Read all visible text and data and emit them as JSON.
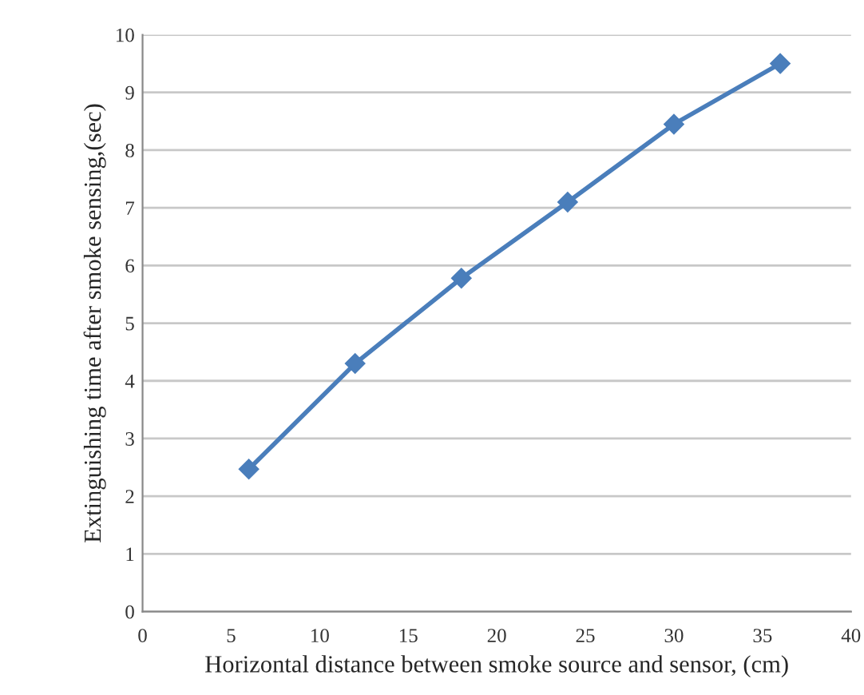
{
  "chart_data": {
    "type": "line",
    "xlabel": "Horizontal distance between smoke source and sensor, (cm)",
    "ylabel": "Extinguishing time after smoke sensing,(sec)",
    "x": [
      6,
      12,
      18,
      24,
      30,
      36
    ],
    "series": [
      {
        "color": "#4a7ebb",
        "values": [
          2.47,
          4.3,
          5.78,
          7.1,
          8.45,
          9.5
        ]
      }
    ],
    "xlim": [
      0,
      40
    ],
    "xticks": [
      0,
      5,
      10,
      15,
      20,
      25,
      30,
      35,
      40
    ],
    "ylim": [
      0,
      10
    ],
    "yticks": [
      0,
      1,
      2,
      3,
      4,
      5,
      6,
      7,
      8,
      9,
      10
    ],
    "grid": "y",
    "marker": "diamond",
    "line_style": "solid"
  }
}
